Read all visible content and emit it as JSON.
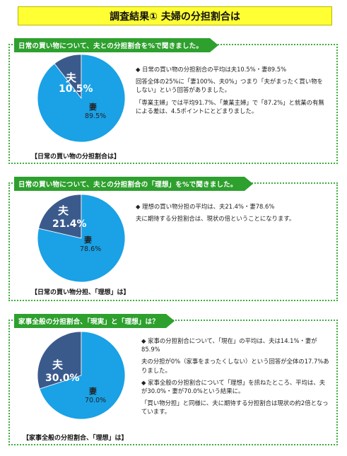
{
  "title": "調査結果① 夫婦の分担割合は",
  "chart_data": [
    {
      "type": "pie",
      "header": "日常の買い物について、夫との分担割合を%で聞きました。",
      "caption": "【日常の買い物の分担割合は】",
      "slices": [
        {
          "name": "夫",
          "value": 10.5,
          "label": "10.5%",
          "color": "#3b5a8c"
        },
        {
          "name": "妻",
          "value": 89.5,
          "label": "89.5%",
          "color": "#1aa1e6"
        }
      ]
    },
    {
      "type": "pie",
      "header": "日常の買い物について、夫との分担割合の「理想」を%で聞きました。",
      "caption": "【日常の買い物分担、「理想」は】",
      "slices": [
        {
          "name": "夫",
          "value": 21.4,
          "label": "21.4%",
          "color": "#3b5a8c"
        },
        {
          "name": "妻",
          "value": 78.6,
          "label": "78.6%",
          "color": "#1aa1e6"
        }
      ]
    },
    {
      "type": "pie",
      "header": "家事全般の分担割合、「現実」と「理想」は？",
      "caption": "【家事全般の分担割合、「理想」は】",
      "slices": [
        {
          "name": "夫",
          "value": 30.0,
          "label": "30.0%",
          "color": "#3b5a8c"
        },
        {
          "name": "妻",
          "value": 70.0,
          "label": "70.0%",
          "color": "#1aa1e6"
        }
      ]
    }
  ],
  "texts": {
    "s1": [
      "◆ 日常の買い物の分担割合の平均は夫10.5%・妻89.5%",
      "回答全体の25%に「妻100%、夫0%」つまり「夫がまったく買い物をしない」という回答がありました。",
      "「専業主婦」では平均91.7%、「兼業主婦」で「87.2%」と就業の有無による差は、4.5ポイントにとどまりました。"
    ],
    "s2": [
      "◆ 理想の買い物分担の平均は、夫21.4%・妻78.6%",
      "夫に期待する分担割合は、現状の倍ということになります。"
    ],
    "s3": [
      "◆ 家事の分担割合について、「現在」の平均は、夫は14.1%・妻が85.9%",
      "夫の分担が0%（家事をまったくしない）という回答が全体の17.7%ありました。",
      "◆ 家事全般の分担割合について「理想」を訊ねたところ、平均は、夫が30.0%・妻が70.0%という結果に。",
      "「買い物分担」と同様に、夫に期待する分担割合は現状の約2倍となっています。"
    ]
  }
}
